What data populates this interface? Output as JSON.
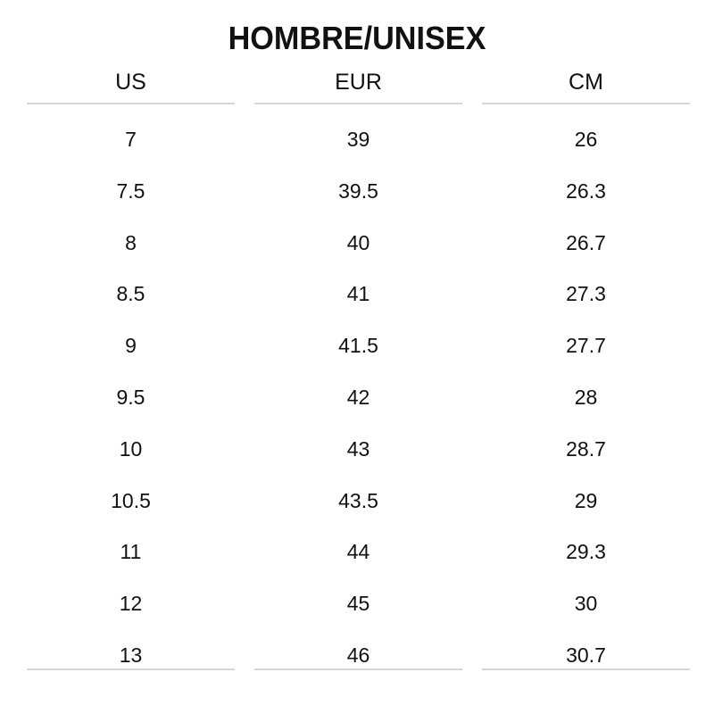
{
  "title": "HOMBRE/UNISEX",
  "columns": [
    {
      "header": "US",
      "values": [
        "7",
        "7.5",
        "8",
        "8.5",
        "9",
        "9.5",
        "10",
        "10.5",
        "11",
        "12",
        "13"
      ]
    },
    {
      "header": "EUR",
      "values": [
        "39",
        "39.5",
        "40",
        "41",
        "41.5",
        "42",
        "43",
        "43.5",
        "44",
        "45",
        "46"
      ]
    },
    {
      "header": "CM",
      "values": [
        "26",
        "26.3",
        "26.7",
        "27.3",
        "27.7",
        "28",
        "28.7",
        "29",
        "29.3",
        "30",
        "30.7"
      ]
    }
  ]
}
